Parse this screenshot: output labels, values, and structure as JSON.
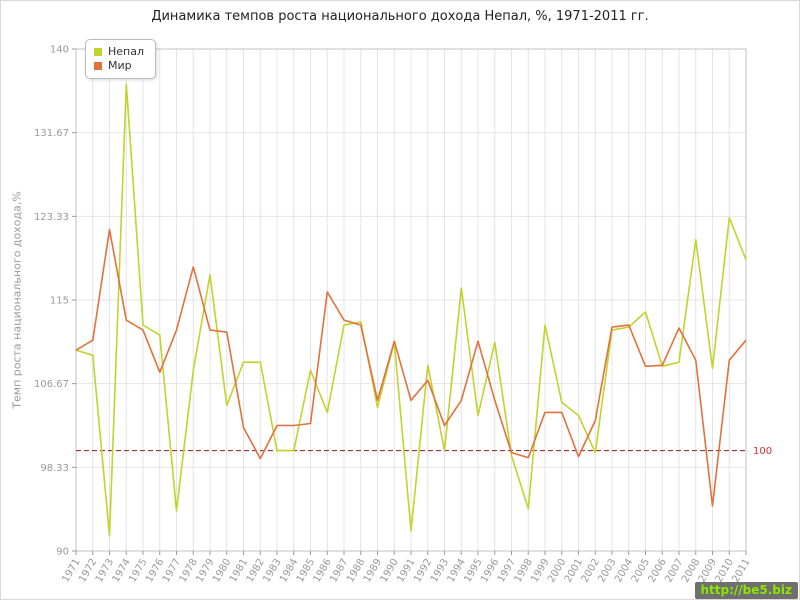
{
  "page": {
    "title": "Динамика темпов роста национального дохода Непал, %, 1971-2011 гг.",
    "watermark": "http://be5.biz"
  },
  "chart_data": {
    "type": "line",
    "title": "Динамика темпов роста национального дохода Непал, %, 1971-2011 гг.",
    "xlabel": "",
    "ylabel": "Темп роста национального дохода,%",
    "ylim": [
      90,
      140
    ],
    "yticks": [
      90,
      98.33,
      106.67,
      115,
      123.33,
      131.67,
      140
    ],
    "ytick_labels": [
      "90",
      "98.33",
      "106.67",
      "115",
      "123.33",
      "131.67",
      "140"
    ],
    "grid": true,
    "legend_position": "top-left",
    "reference_line": {
      "value": 100,
      "label": "100",
      "color": "#991111",
      "label_color": "#cc3333",
      "style": "dashed"
    },
    "categories": [
      1971,
      1972,
      1973,
      1974,
      1975,
      1976,
      1977,
      1978,
      1979,
      1980,
      1981,
      1982,
      1983,
      1984,
      1985,
      1986,
      1987,
      1988,
      1989,
      1990,
      1991,
      1992,
      1993,
      1994,
      1995,
      1996,
      1997,
      1998,
      1999,
      2000,
      2001,
      2002,
      2003,
      2004,
      2005,
      2006,
      2007,
      2008,
      2009,
      2010,
      2011
    ],
    "series": [
      {
        "key": "nepal",
        "name": "Непал",
        "color": "#c3d22d",
        "values": [
          110.0,
          109.5,
          91.5,
          136.5,
          112.5,
          111.5,
          94.0,
          108.0,
          117.5,
          104.5,
          108.8,
          108.8,
          100.0,
          100.0,
          108.0,
          103.8,
          112.5,
          112.8,
          104.3,
          110.8,
          92.0,
          108.5,
          100.0,
          116.2,
          103.5,
          110.8,
          99.5,
          94.2,
          112.5,
          104.8,
          103.5,
          99.8,
          112.0,
          112.3,
          113.8,
          108.4,
          108.8,
          121.0,
          108.2,
          123.2,
          119.0
        ]
      },
      {
        "key": "world",
        "name": "Мир",
        "color": "#e2713d",
        "values": [
          110.0,
          111.0,
          122.0,
          113.0,
          112.0,
          107.8,
          112.0,
          118.3,
          112.0,
          111.8,
          102.3,
          99.2,
          102.5,
          102.5,
          102.7,
          115.8,
          113.0,
          112.5,
          105.0,
          110.9,
          105.0,
          107.0,
          102.5,
          105.0,
          110.9,
          105.0,
          99.8,
          99.3,
          103.8,
          103.8,
          99.4,
          103.0,
          112.3,
          112.5,
          108.4,
          108.5,
          112.2,
          109.0,
          94.5,
          109.0,
          111.0
        ]
      }
    ],
    "colors": {
      "grid": "#e4e4e4",
      "frame": "#c0c0c0",
      "tick_label": "#999999",
      "title": "#222222",
      "background": "#ffffff"
    }
  }
}
